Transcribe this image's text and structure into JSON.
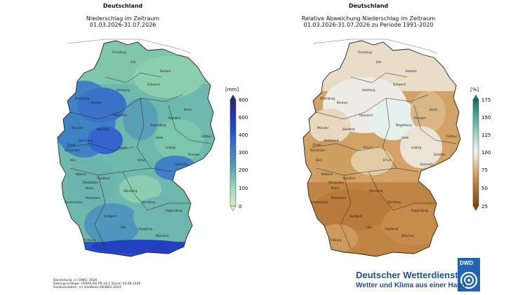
{
  "left_map": {
    "title": "Deutschland",
    "subtitle_line1": "Niederschlag im Zeitraum",
    "subtitle_line2": "01.03.2026-31.07.2026",
    "unit": "[mm]",
    "colorbar_ticks": [
      "800",
      "600",
      "400",
      "300",
      "200",
      "100",
      "0"
    ],
    "colors": [
      "#d6ecc6",
      "#7fcbb0",
      "#4aa2b2",
      "#3c78c8",
      "#2a4fd0",
      "#202fa8",
      "#2a2a6e"
    ]
  },
  "right_map": {
    "title": "Deutschland",
    "subtitle_line1": "Relative Abweichung Niederschlag im Zeitraum",
    "subtitle_line2": "01.03.2026-31.07.2026 zu Periode 1991-2020",
    "unit": "[%]",
    "colorbar_ticks": [
      "175",
      "150",
      "125",
      "100",
      "75",
      "50",
      "25"
    ],
    "colors": [
      "#7a4a1c",
      "#b4773a",
      "#d6a869",
      "#f0dcc0",
      "#eef2f2",
      "#a8d6cd",
      "#4ea79a",
      "#1f6e60"
    ]
  },
  "cities": [
    "Flensburg",
    "Kiel",
    "Rostock",
    "Schwerin",
    "Hamburg",
    "Bremen",
    "Oldenburg",
    "Hannover",
    "Berlin",
    "Potsdam",
    "Magdeburg",
    "Münster",
    "Bielefeld",
    "Dortmund",
    "Essen",
    "Düsseldorf",
    "Köln",
    "Kassel",
    "Leipzig",
    "Dresden",
    "Erfurt",
    "Chemnitz",
    "Koblenz",
    "Frankfurt",
    "Wiesbaden",
    "Mainz",
    "Würzburg",
    "Mannheim",
    "Saarbrücken",
    "Nürnberg",
    "Stuttgart",
    "Regensburg",
    "Ulm",
    "Augsburg",
    "München",
    "Freiburg",
    "Cottbus",
    "Halle"
  ],
  "credits": {
    "line1": "Darstellung: (c) DWD, 2026",
    "line2": "Datengrundlage: HYRAS-DE-PR v6.1  Stand: 03.08.2026",
    "line3": "Geobasisdaten: (c) GeoBasis-DE/BKG 2024"
  },
  "brand": {
    "name": "Deutscher Wetterdienst",
    "tagline": "Wetter und Klima aus einer Hand",
    "logo_text": "DWD",
    "color": "#1f4f8f"
  }
}
